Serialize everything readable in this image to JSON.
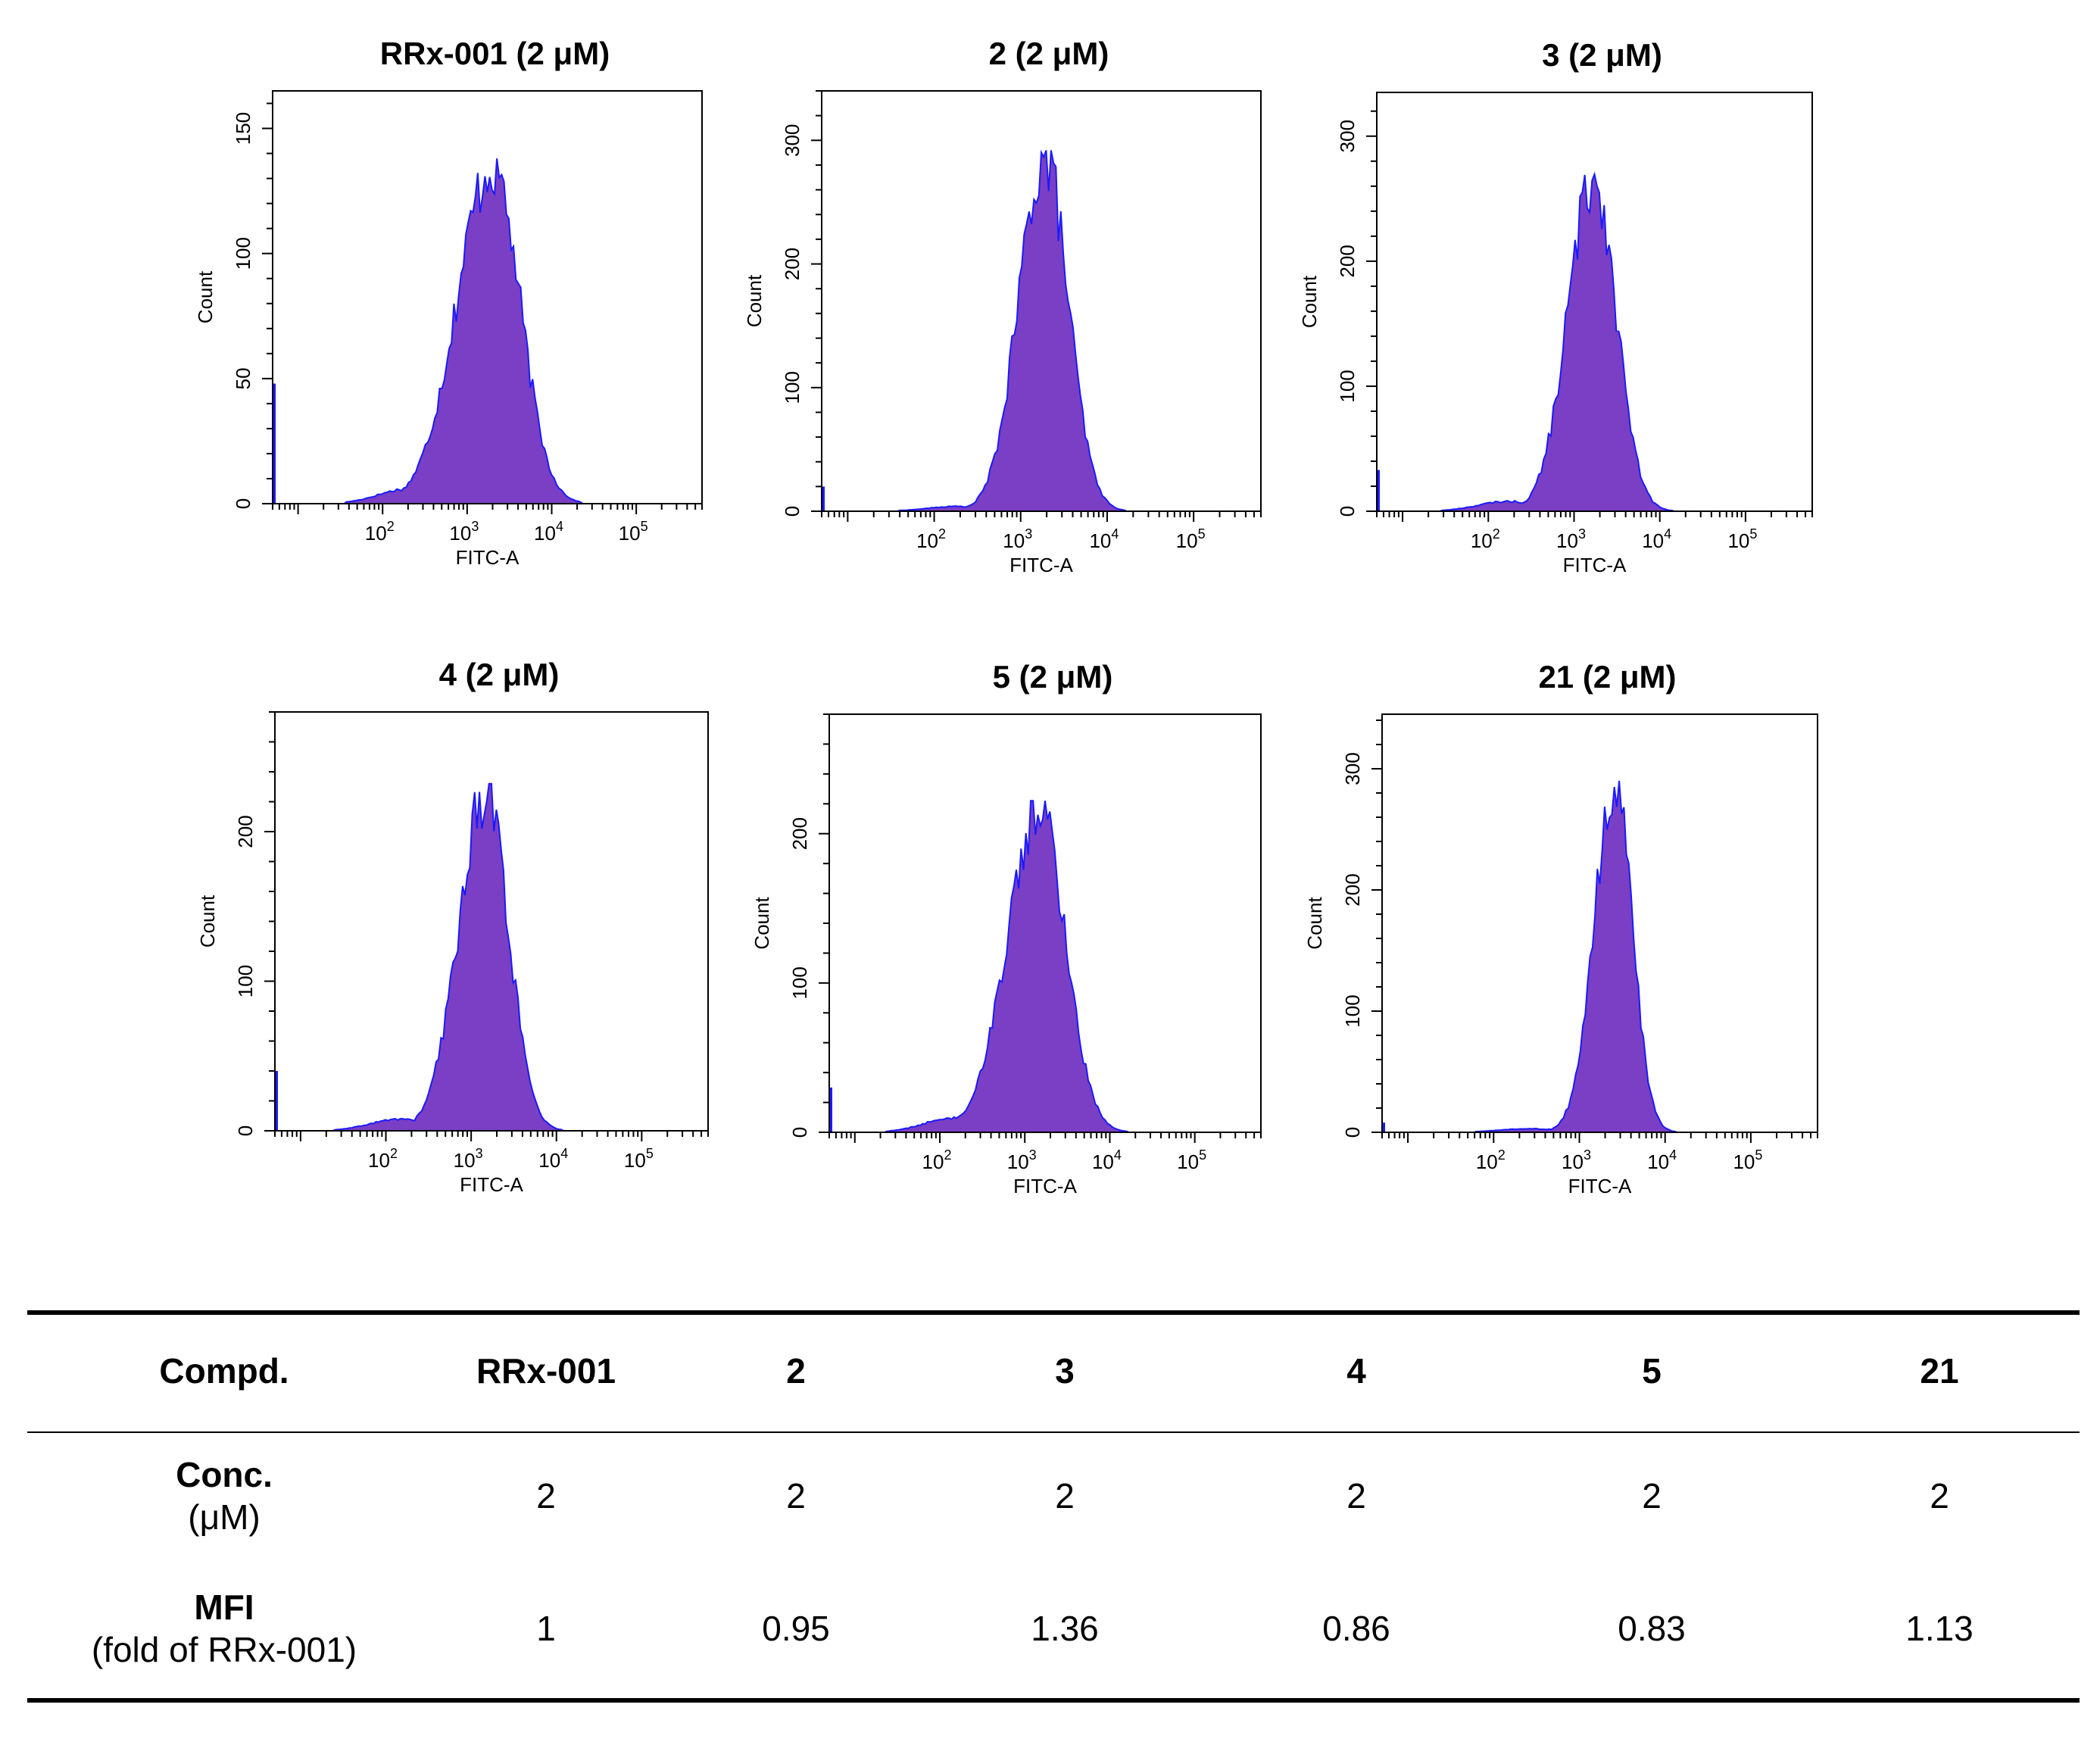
{
  "chart_data": [
    {
      "type": "histogram",
      "title": "RRx-001 (2 μM)",
      "xlabel": "FITC-A",
      "ylabel": "Count",
      "x_scale": "log",
      "xlim": [
        5,
        600000
      ],
      "x_ticks": [
        "10^2",
        "10^3",
        "10^4",
        "10^5"
      ],
      "ylim": [
        0,
        165
      ],
      "y_ticks": [
        0,
        50,
        100,
        150
      ],
      "peak_x": 2000,
      "peak_count": 138,
      "spread_log_left": 0.42,
      "spread_log_right": 0.32,
      "shoulder_count": 6,
      "edge_count": 48
    },
    {
      "type": "histogram",
      "title": "2 (2 μM)",
      "xlabel": "FITC-A",
      "ylabel": "Count",
      "x_scale": "log",
      "xlim": [
        5,
        600000
      ],
      "x_ticks": [
        "10^2",
        "10^3",
        "10^4",
        "10^5"
      ],
      "ylim": [
        0,
        340
      ],
      "y_ticks": [
        0,
        100,
        200,
        300
      ],
      "peak_x": 1900,
      "peak_count": 292,
      "spread_log_left": 0.3,
      "spread_log_right": 0.27,
      "shoulder_count": 4,
      "edge_count": 20
    },
    {
      "type": "histogram",
      "title": "3 (2 μM)",
      "xlabel": "FITC-A",
      "ylabel": "Count",
      "x_scale": "log",
      "xlim": [
        5,
        600000
      ],
      "x_ticks": [
        "10^2",
        "10^3",
        "10^4",
        "10^5"
      ],
      "ylim": [
        0,
        335
      ],
      "y_ticks": [
        0,
        100,
        200,
        300
      ],
      "peak_x": 1700,
      "peak_count": 272,
      "spread_log_left": 0.3,
      "spread_log_right": 0.26,
      "shoulder_count": 8,
      "edge_count": 33
    },
    {
      "type": "histogram",
      "title": "4 (2 μM)",
      "xlabel": "FITC-A",
      "ylabel": "Count",
      "x_scale": "log",
      "xlim": [
        5,
        600000
      ],
      "x_ticks": [
        "10^2",
        "10^3",
        "10^4",
        "10^5"
      ],
      "ylim": [
        0,
        280
      ],
      "y_ticks": [
        0,
        100,
        200
      ],
      "peak_x": 1500,
      "peak_count": 232,
      "spread_log_left": 0.32,
      "spread_log_right": 0.26,
      "shoulder_count": 8,
      "edge_count": 40
    },
    {
      "type": "histogram",
      "title": "5 (2 μM)",
      "xlabel": "FITC-A",
      "ylabel": "Count",
      "x_scale": "log",
      "xlim": [
        5,
        600000
      ],
      "x_ticks": [
        "10^2",
        "10^3",
        "10^4",
        "10^5"
      ],
      "ylim": [
        0,
        280
      ],
      "y_ticks": [
        0,
        100,
        200
      ],
      "peak_x": 1500,
      "peak_count": 222,
      "spread_log_left": 0.38,
      "spread_log_right": 0.3,
      "shoulder_count": 10,
      "edge_count": 30
    },
    {
      "type": "histogram",
      "title": "21 (2 μM)",
      "xlabel": "FITC-A",
      "ylabel": "Count",
      "x_scale": "log",
      "xlim": [
        5,
        600000
      ],
      "x_ticks": [
        "10^2",
        "10^3",
        "10^4",
        "10^5"
      ],
      "ylim": [
        0,
        345
      ],
      "y_ticks": [
        0,
        100,
        200,
        300
      ],
      "peak_x": 2600,
      "peak_count": 290,
      "spread_log_left": 0.24,
      "spread_log_right": 0.2,
      "shoulder_count": 3,
      "edge_count": 8
    }
  ],
  "colors": {
    "fill": "#7a3fc4",
    "outline": "#1a1aff",
    "axis": "#000000"
  },
  "table": {
    "header_label": "Compd.",
    "columns": [
      "RRx-001",
      "2",
      "3",
      "4",
      "5",
      "21"
    ],
    "rows": [
      {
        "label": "Conc.",
        "sublabel": "(μM)",
        "values": [
          "2",
          "2",
          "2",
          "2",
          "2",
          "2"
        ]
      },
      {
        "label": "MFI",
        "sublabel": "(fold of RRx-001)",
        "values": [
          "1",
          "0.95",
          "1.36",
          "0.86",
          "0.83",
          "1.13"
        ]
      }
    ]
  }
}
